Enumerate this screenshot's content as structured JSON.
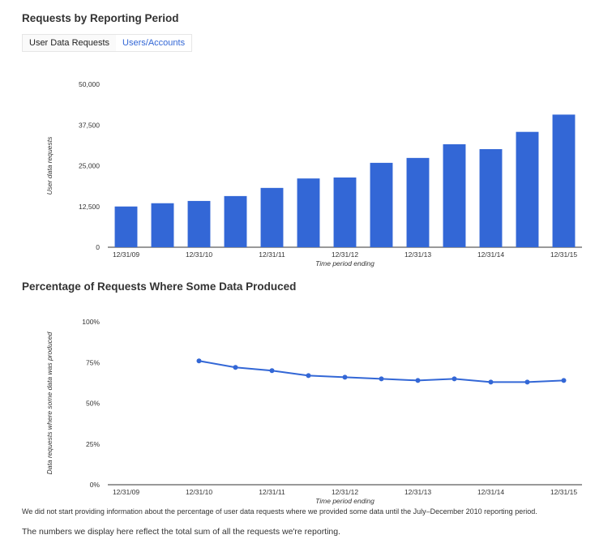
{
  "header": {
    "title": "Requests by Reporting Period",
    "tabs": [
      {
        "label": "User Data Requests",
        "active": true
      },
      {
        "label": "Users/Accounts",
        "active": false
      }
    ]
  },
  "section2": {
    "title": "Percentage of Requests Where Some Data Produced"
  },
  "notes": {
    "footnote": "We did not start providing information about the percentage of user data requests where we provided some data until the July–December 2010 reporting period.",
    "summary": "The numbers we display here reflect the total sum of all the requests we're reporting."
  },
  "colors": {
    "bar": "#3367d6",
    "line": "#3367d6",
    "tab_link": "#3367d6"
  },
  "chart_data": [
    {
      "type": "bar",
      "xlabel": "Time period ending",
      "ylabel": "User data requests",
      "ylim": [
        0,
        50000
      ],
      "yticks": [
        "0",
        "12,500",
        "25,000",
        "37,500",
        "50,000"
      ],
      "ytick_values": [
        0,
        12500,
        25000,
        37500,
        50000
      ],
      "categories": [
        "12/31/09",
        "",
        "12/31/10",
        "",
        "12/31/11",
        "",
        "12/31/12",
        "",
        "12/31/13",
        "",
        "12/31/14",
        "",
        "12/31/15"
      ],
      "values": [
        12500,
        13500,
        14200,
        15700,
        18200,
        21100,
        21400,
        25900,
        27400,
        31600,
        30100,
        35400,
        40700
      ],
      "grid": false,
      "legend": "none"
    },
    {
      "type": "line",
      "xlabel": "Time period ending",
      "ylabel": "Data requests where some data was produced",
      "ylim": [
        0,
        100
      ],
      "yticks": [
        "0%",
        "25%",
        "50%",
        "75%",
        "100%"
      ],
      "ytick_values": [
        0,
        25,
        50,
        75,
        100
      ],
      "categories": [
        "12/31/09",
        "",
        "12/31/10",
        "",
        "12/31/11",
        "",
        "12/31/12",
        "",
        "12/31/13",
        "",
        "12/31/14",
        "",
        "12/31/15"
      ],
      "values": [
        null,
        null,
        76,
        72,
        70,
        67,
        66,
        65,
        64,
        65,
        63,
        63,
        64
      ],
      "grid": false,
      "legend": "none"
    }
  ]
}
